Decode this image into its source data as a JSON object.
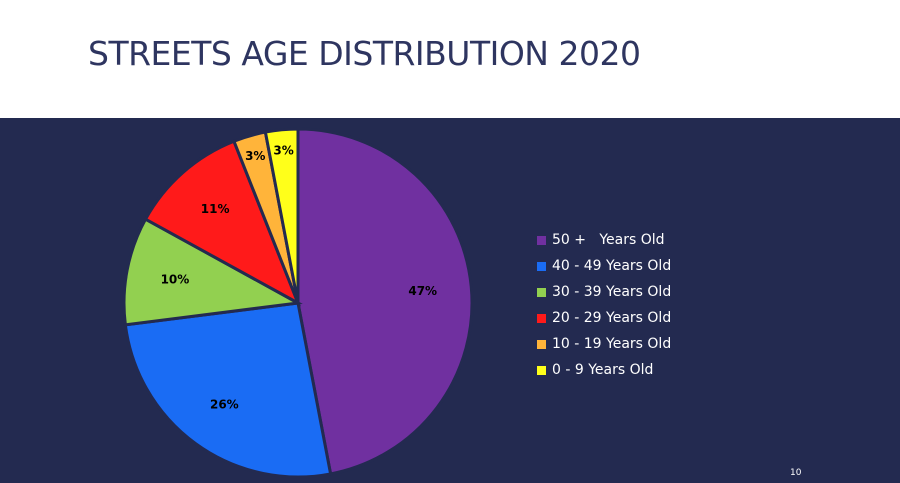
{
  "title": "STREETS AGE DISTRIBUTION 2020",
  "page_number": "10",
  "colors": {
    "panel_background": "#232a50",
    "title_text": "#2e3560"
  },
  "chart_data": {
    "type": "pie",
    "title": "",
    "legend_position": "right",
    "slices": [
      {
        "label": "50 +   Years Old",
        "value": 47,
        "display": "47%",
        "color": "#7030a0"
      },
      {
        "label": "40 - 49 Years Old",
        "value": 26,
        "display": "26%",
        "color": "#1a6cf4"
      },
      {
        "label": "30 - 39 Years Old",
        "value": 10,
        "display": "10%",
        "color": "#92d050"
      },
      {
        "label": "20 - 29 Years Old",
        "value": 11,
        "display": "11%",
        "color": "#ff1a1a"
      },
      {
        "label": "10 - 19 Years Old",
        "value": 3,
        "display": "3%",
        "color": "#ffb43a"
      },
      {
        "label": "0 - 9 Years Old",
        "value": 3,
        "display": "3%",
        "color": "#ffff1a"
      }
    ]
  }
}
